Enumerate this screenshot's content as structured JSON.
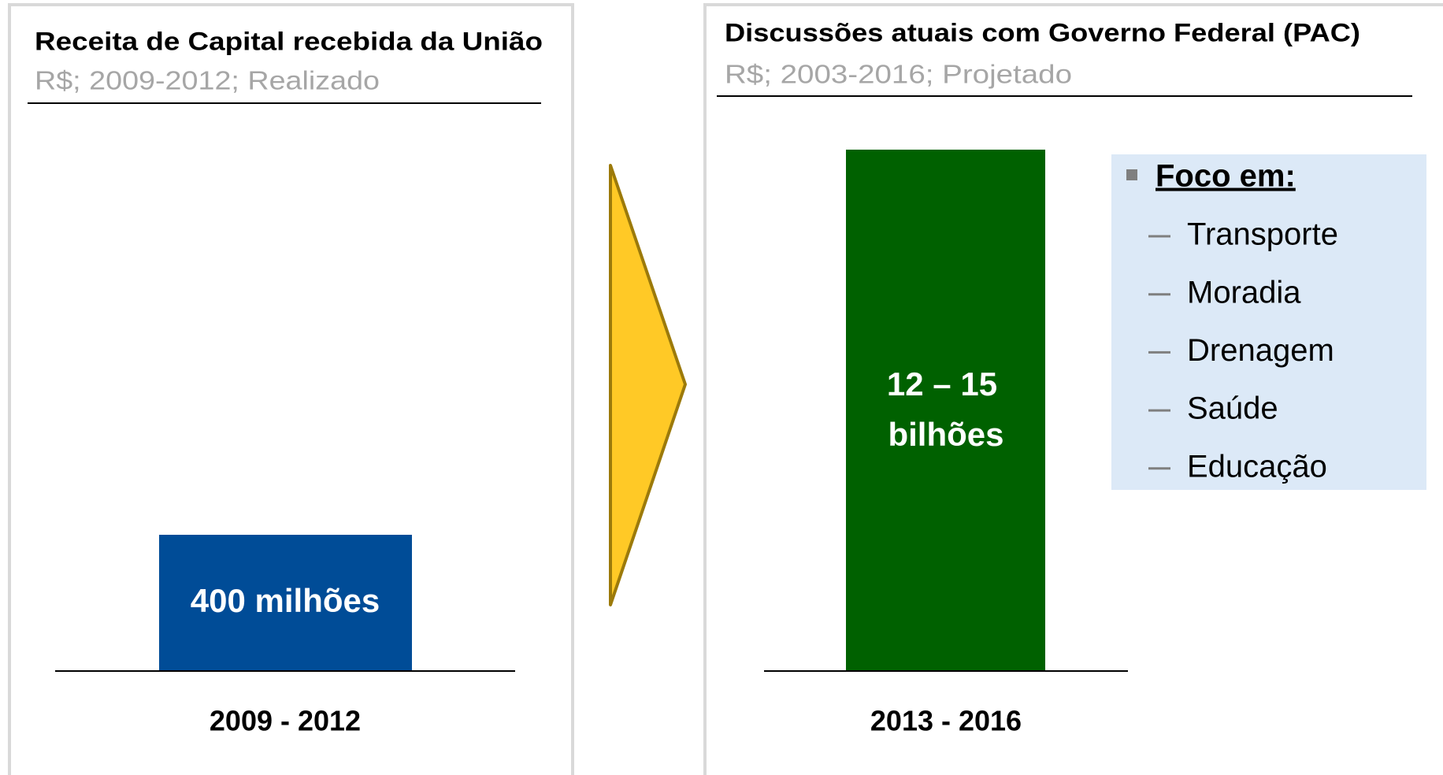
{
  "left": {
    "title": "Receita de Capital recebida da União",
    "subtitle": "R$; 2009-2012; Realizado",
    "bar_label": "400 milhões",
    "period": "2009 - 2012"
  },
  "right": {
    "title": "Discussões  atuais com Governo Federal (PAC)",
    "subtitle": "R$; 2003-2016; Projetado",
    "bar_label": [
      "12 – 15",
      "bilhões"
    ],
    "period": "2013 - 2016"
  },
  "focus": {
    "title": "Foco em:",
    "items": [
      "Transporte",
      "Moradia",
      "Drenagem",
      "Saúde",
      "Educação"
    ]
  }
}
